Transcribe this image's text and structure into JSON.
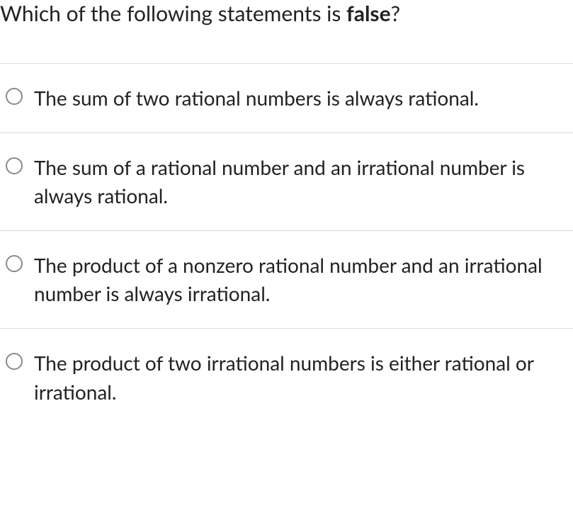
{
  "question": {
    "prefix": "Which of the following statements is ",
    "bold_word": "false",
    "suffix": "?"
  },
  "options": [
    {
      "text": "The sum of two rational numbers is always rational."
    },
    {
      "text": "The sum of a rational number and an irrational number is always rational."
    },
    {
      "text": "The product of a nonzero rational number and an irrational number is always irrational."
    },
    {
      "text": "The product of two irrational numbers is either rational or irrational."
    }
  ],
  "styling": {
    "text_color": "#222222",
    "border_color": "#dcdcdc",
    "radio_border_color": "#8a8a8a",
    "background_color": "#ffffff",
    "question_fontsize": 30,
    "option_fontsize": 28
  }
}
